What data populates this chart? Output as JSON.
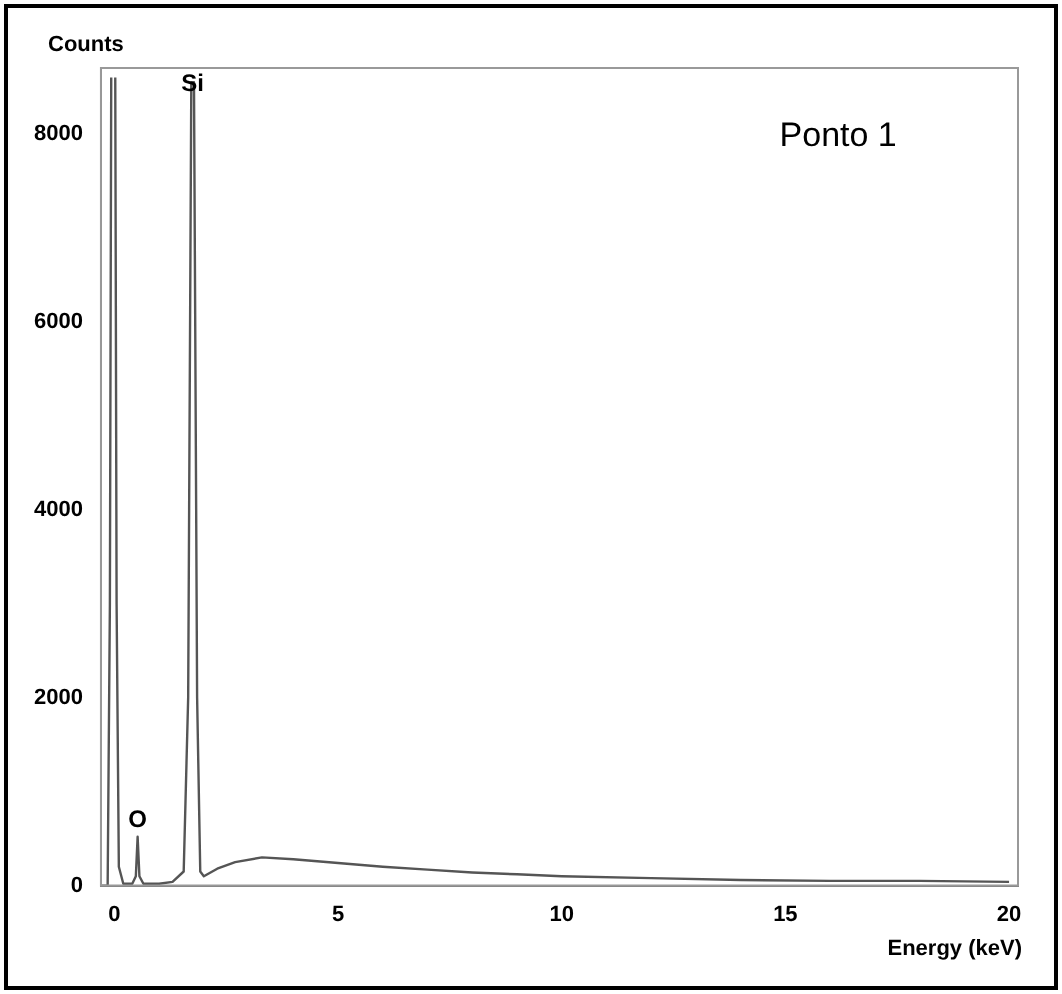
{
  "chart_data": {
    "type": "line",
    "xlabel": "Energy (keV)",
    "ylabel": "Counts",
    "x": [
      -0.3,
      -0.15,
      -0.1,
      -0.07,
      -0.05,
      0,
      0.02,
      0.05,
      0.1,
      0.2,
      0.4,
      0.48,
      0.52,
      0.56,
      0.65,
      1.0,
      1.3,
      1.55,
      1.65,
      1.72,
      1.78,
      1.85,
      1.92,
      2.0,
      2.3,
      2.7,
      3.3,
      4,
      5,
      6,
      7,
      8,
      9,
      10,
      12,
      14,
      16,
      18,
      20
    ],
    "series": [
      {
        "color": "#555555",
        "values": [
          0,
          0,
          3000,
          8600,
          null,
          null,
          8600,
          3000,
          200,
          20,
          20,
          100,
          520,
          100,
          20,
          20,
          40,
          150,
          2000,
          8550,
          8550,
          2000,
          150,
          100,
          180,
          250,
          300,
          280,
          240,
          200,
          170,
          140,
          120,
          100,
          80,
          60,
          50,
          50,
          40
        ]
      }
    ],
    "xlim": [
      -0.3,
      20.2
    ],
    "ylim": [
      0,
      8700
    ],
    "xticks": [
      0,
      5,
      10,
      15,
      20
    ],
    "yticks": [
      0,
      2000,
      4000,
      6000,
      8000
    ],
    "grid": false,
    "legend": false,
    "marker": "none",
    "line_style": "solid",
    "annotations": [
      {
        "text": "O",
        "x": 0.52,
        "y": 520
      },
      {
        "text": "Si",
        "x": 1.75,
        "y": 8550
      },
      "Ponto 1"
    ]
  }
}
